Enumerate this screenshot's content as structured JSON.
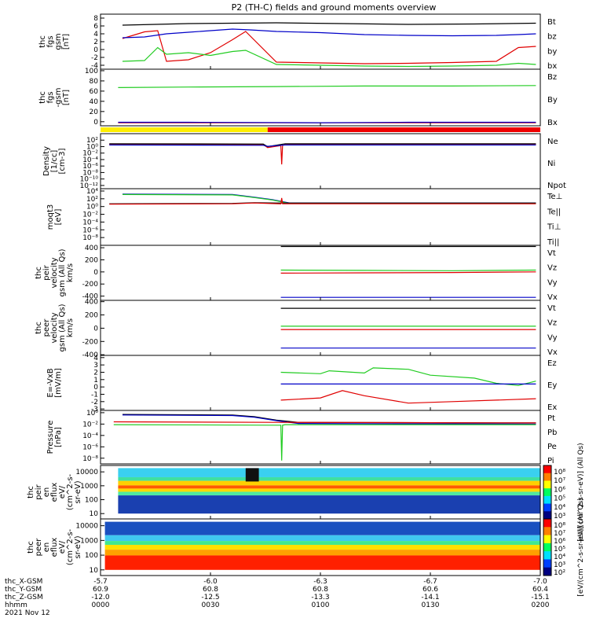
{
  "title": "P2 (TH-C) fields and ground moments overview",
  "colors": {
    "black": "#000000",
    "red": "#e00000",
    "green": "#22cc22",
    "blue": "#0000c8",
    "yellow": "#ffee00",
    "barred": "#ee0000"
  },
  "chart_data": [
    {
      "type": "line",
      "ylabel": [
        "thc",
        "fgs",
        "gsm",
        "[nT]"
      ],
      "ylim": [
        -5,
        9
      ],
      "yticks": [
        "-4",
        "-2",
        "0",
        "2",
        "4",
        "6",
        "8"
      ],
      "ytick_values": [
        -4,
        -2,
        0,
        2,
        4,
        6,
        8
      ],
      "legend": [
        {
          "label": "Bt",
          "color": "#000000"
        },
        {
          "label": "bz",
          "color": "#e00000"
        },
        {
          "label": "by",
          "color": "#22cc22"
        },
        {
          "label": "bx",
          "color": "#0000c8"
        }
      ],
      "series": [
        {
          "name": "Bt",
          "color": "#000000",
          "x": [
            0.05,
            0.2,
            0.4,
            0.55,
            0.7,
            0.85,
            0.99
          ],
          "y": [
            6.2,
            6.6,
            6.8,
            6.6,
            6.4,
            6.5,
            6.7
          ]
        },
        {
          "name": "bz",
          "color": "#e00000",
          "x": [
            0.05,
            0.1,
            0.13,
            0.15,
            0.2,
            0.25,
            0.3,
            0.33,
            0.4,
            0.5,
            0.6,
            0.7,
            0.8,
            0.9,
            0.95,
            0.99
          ],
          "y": [
            2.8,
            4.5,
            4.8,
            -3.0,
            -2.6,
            -0.8,
            2.5,
            4.6,
            -3.2,
            -3.4,
            -3.6,
            -3.5,
            -3.3,
            -3.0,
            0.5,
            0.8
          ]
        },
        {
          "name": "by",
          "color": "#22cc22",
          "x": [
            0.05,
            0.1,
            0.13,
            0.15,
            0.2,
            0.25,
            0.3,
            0.33,
            0.4,
            0.5,
            0.6,
            0.7,
            0.8,
            0.9,
            0.95,
            0.99
          ],
          "y": [
            -3.0,
            -2.8,
            0.5,
            -1.2,
            -0.8,
            -1.5,
            -0.5,
            -0.2,
            -3.8,
            -4.0,
            -4.2,
            -4.3,
            -4.2,
            -4.0,
            -3.5,
            -3.8
          ]
        },
        {
          "name": "bx",
          "color": "#0000c8",
          "x": [
            0.05,
            0.1,
            0.15,
            0.2,
            0.3,
            0.34,
            0.4,
            0.5,
            0.6,
            0.7,
            0.8,
            0.9,
            0.95,
            0.99
          ],
          "y": [
            3.0,
            3.2,
            4.0,
            4.4,
            5.2,
            5.0,
            4.6,
            4.3,
            3.8,
            3.6,
            3.5,
            3.6,
            3.8,
            4.0
          ]
        }
      ]
    },
    {
      "type": "line",
      "ylabel": [
        "thc",
        "fgs",
        "-gsm",
        "[nT]"
      ],
      "ylim": [
        -8,
        103
      ],
      "yticks": [
        "0",
        "20",
        "40",
        "60",
        "80",
        "100"
      ],
      "ytick_values": [
        0,
        20,
        40,
        60,
        80,
        100
      ],
      "legend": [
        {
          "label": "Bz",
          "color": "#e00000"
        },
        {
          "label": "By",
          "color": "#22cc22"
        },
        {
          "label": "Bx",
          "color": "#0000c8"
        }
      ],
      "series": [
        {
          "name": "Bz",
          "color": "#e00000",
          "x": [
            0.04,
            0.99
          ],
          "y": [
            -2,
            -2
          ]
        },
        {
          "name": "By",
          "color": "#22cc22",
          "x": [
            0.04,
            0.2,
            0.4,
            0.6,
            0.8,
            0.99
          ],
          "y": [
            67,
            68,
            69,
            70,
            70,
            71
          ]
        },
        {
          "name": "Bx",
          "color": "#0000c8",
          "x": [
            0.04,
            0.2,
            0.5,
            0.7,
            0.99
          ],
          "y": [
            -1,
            -1,
            -2,
            -1,
            -1
          ]
        }
      ]
    },
    {
      "type": "line",
      "log": true,
      "ylabel": [
        "Density",
        "[1/cc]",
        "[cm-3]"
      ],
      "ylim": [
        -13,
        4
      ],
      "yticks": [
        "10²",
        "10⁰",
        "10⁻²",
        "10⁻⁴",
        "10⁻⁶",
        "10⁻⁸",
        "10⁻¹⁰",
        "10⁻¹²"
      ],
      "ytick_values": [
        2,
        0,
        -2,
        -4,
        -6,
        -8,
        -10,
        -12
      ],
      "legend": [
        {
          "label": "Ne",
          "color": "#e00000"
        },
        {
          "label": "Ni",
          "color": "#000000"
        },
        {
          "label": "Npot",
          "color": "#0000c8"
        }
      ],
      "series": [
        {
          "name": "Ne",
          "color": "#e00000",
          "x": [
            0.02,
            0.37,
            0.38,
            0.41,
            0.412,
            0.414,
            0.42,
            0.43,
            0.99
          ],
          "y": [
            0.7,
            0.6,
            -0.3,
            0.3,
            -5.5,
            0.4,
            0.6,
            0.7,
            0.7
          ]
        },
        {
          "name": "Ni",
          "color": "#000000",
          "x": [
            0.02,
            0.37,
            0.38,
            0.42,
            0.99
          ],
          "y": [
            0.9,
            0.8,
            0.0,
            0.9,
            0.9
          ]
        },
        {
          "name": "Npot",
          "color": "#0000c8",
          "x": [
            0.02,
            0.37,
            0.38,
            0.42,
            0.99
          ],
          "y": [
            0.5,
            0.4,
            0.1,
            0.5,
            0.5
          ]
        }
      ]
    },
    {
      "type": "line",
      "log": true,
      "ylabel": [
        "moqt3",
        "[eV]"
      ],
      "ylim": [
        -10,
        4.6
      ],
      "yticks": [
        "10⁴",
        "10²",
        "10⁰",
        "10⁻²",
        "10⁻⁴",
        "10⁻⁶",
        "10⁻⁸"
      ],
      "ytick_values": [
        4,
        2,
        0,
        -2,
        -4,
        -6,
        -8
      ],
      "legend": [
        {
          "label": "Te⊥",
          "color": "#e00000"
        },
        {
          "label": "Te||",
          "color": "#000000"
        },
        {
          "label": "Ti⊥",
          "color": "#0000c8"
        },
        {
          "label": "Ti||",
          "color": "#22cc22"
        }
      ],
      "series": [
        {
          "name": "Ti⊥",
          "color": "#0000c8",
          "x": [
            0.05,
            0.3,
            0.35,
            0.39,
            0.43,
            0.99
          ],
          "y": [
            3.2,
            3.1,
            2.4,
            1.8,
            0.9,
            0.9
          ]
        },
        {
          "name": "Ti||",
          "color": "#22cc22",
          "x": [
            0.05,
            0.3,
            0.35,
            0.39,
            0.43,
            0.99
          ],
          "y": [
            3.1,
            3.0,
            2.3,
            1.7,
            0.8,
            0.8
          ]
        },
        {
          "name": "Te||",
          "color": "#000000",
          "x": [
            0.02,
            0.3,
            0.35,
            0.4,
            0.99
          ],
          "y": [
            0.7,
            0.8,
            1.0,
            0.9,
            0.9
          ]
        },
        {
          "name": "Te⊥",
          "color": "#e00000",
          "x": [
            0.02,
            0.3,
            0.35,
            0.41,
            0.412,
            0.414,
            0.99
          ],
          "y": [
            0.6,
            0.7,
            0.9,
            0.7,
            2.2,
            0.7,
            0.7
          ]
        }
      ]
    },
    {
      "type": "line",
      "ylabel": [
        "thc",
        "peir",
        "velocity",
        "gsm (All Qs)",
        "km/s"
      ],
      "ylim": [
        -470,
        440
      ],
      "yticks": [
        "400",
        "200",
        "0",
        "-200",
        "-400"
      ],
      "ytick_values": [
        400,
        200,
        0,
        -200,
        -400
      ],
      "legend": [
        {
          "label": "Vt",
          "color": "#000000"
        },
        {
          "label": "Vz",
          "color": "#e00000"
        },
        {
          "label": "Vy",
          "color": "#22cc22"
        },
        {
          "label": "Vx",
          "color": "#0000c8"
        }
      ],
      "series": [
        {
          "name": "Vt",
          "color": "#000000",
          "x": [
            0.41,
            0.99
          ],
          "y": [
            420,
            420
          ]
        },
        {
          "name": "Vy",
          "color": "#22cc22",
          "x": [
            0.41,
            0.6,
            0.8,
            0.99
          ],
          "y": [
            30,
            25,
            20,
            30
          ]
        },
        {
          "name": "Vz",
          "color": "#e00000",
          "x": [
            0.41,
            0.6,
            0.8,
            0.99
          ],
          "y": [
            -20,
            -15,
            -10,
            0
          ]
        },
        {
          "name": "Vx",
          "color": "#0000c8",
          "x": [
            0.41,
            0.99
          ],
          "y": [
            -420,
            -420
          ]
        }
      ]
    },
    {
      "type": "line",
      "ylabel": [
        "thc",
        "peer",
        "velocity",
        "gsm (All Qs)",
        "km/s"
      ],
      "ylim": [
        -410,
        420
      ],
      "yticks": [
        "400",
        "200",
        "0",
        "-200",
        "-400"
      ],
      "ytick_values": [
        400,
        200,
        0,
        -200,
        -400
      ],
      "legend": [
        {
          "label": "Vt",
          "color": "#000000"
        },
        {
          "label": "Vz",
          "color": "#e00000"
        },
        {
          "label": "Vy",
          "color": "#22cc22"
        },
        {
          "label": "Vx",
          "color": "#0000c8"
        }
      ],
      "series": [
        {
          "name": "Vt",
          "color": "#000000",
          "x": [
            0.41,
            0.99
          ],
          "y": [
            300,
            300
          ]
        },
        {
          "name": "Vy",
          "color": "#22cc22",
          "x": [
            0.41,
            0.99
          ],
          "y": [
            30,
            30
          ]
        },
        {
          "name": "Vz",
          "color": "#e00000",
          "x": [
            0.41,
            0.99
          ],
          "y": [
            -20,
            -20
          ]
        },
        {
          "name": "Vx",
          "color": "#0000c8",
          "x": [
            0.41,
            0.99
          ],
          "y": [
            -300,
            -300
          ]
        }
      ]
    },
    {
      "type": "line",
      "ylabel": [
        "E=-VxB",
        "[mV/m]"
      ],
      "ylim": [
        -3.2,
        4.3
      ],
      "yticks": [
        "4",
        "3",
        "2",
        "1",
        "0",
        "-1",
        "-2",
        "-3"
      ],
      "ytick_values": [
        4,
        3,
        2,
        1,
        0,
        -1,
        -2,
        -3
      ],
      "legend": [
        {
          "label": "Ez",
          "color": "#e00000"
        },
        {
          "label": "Ey",
          "color": "#22cc22"
        },
        {
          "label": "Ex",
          "color": "#0000c8"
        }
      ],
      "series": [
        {
          "name": "Ey",
          "color": "#22cc22",
          "x": [
            0.41,
            0.5,
            0.52,
            0.6,
            0.62,
            0.7,
            0.75,
            0.85,
            0.9,
            0.95,
            0.99
          ],
          "y": [
            2.0,
            1.8,
            2.2,
            1.9,
            2.6,
            2.4,
            1.6,
            1.2,
            0.5,
            0.2,
            0.8
          ]
        },
        {
          "name": "Ex",
          "color": "#0000c8",
          "x": [
            0.41,
            0.99
          ],
          "y": [
            0.4,
            0.4
          ]
        },
        {
          "name": "Ez",
          "color": "#e00000",
          "x": [
            0.41,
            0.5,
            0.55,
            0.6,
            0.7,
            0.8,
            0.9,
            0.99
          ],
          "y": [
            -1.8,
            -1.5,
            -0.5,
            -1.2,
            -2.2,
            -2.0,
            -1.8,
            -1.6
          ]
        }
      ]
    },
    {
      "type": "line",
      "log": true,
      "ylabel": [
        "Pressure",
        "[nPa]"
      ],
      "ylim": [
        -9,
        0.4
      ],
      "yticks": [
        "10⁰",
        "10⁻²",
        "10⁻⁴",
        "10⁻⁶",
        "10⁻⁸"
      ],
      "ytick_values": [
        0,
        -2,
        -4,
        -6,
        -8
      ],
      "legend": [
        {
          "label": "Pt",
          "color": "#000000"
        },
        {
          "label": "Pb",
          "color": "#e00000"
        },
        {
          "label": "Pe",
          "color": "#22cc22"
        },
        {
          "label": "Pi",
          "color": "#0000c8"
        }
      ],
      "series": [
        {
          "name": "Pt",
          "color": "#000000",
          "x": [
            0.05,
            0.3,
            0.35,
            0.4,
            0.45,
            0.99
          ],
          "y": [
            -0.3,
            -0.4,
            -0.7,
            -1.3,
            -1.7,
            -1.8
          ]
        },
        {
          "name": "Pi",
          "color": "#0000c8",
          "x": [
            0.05,
            0.3,
            0.35,
            0.4,
            0.45,
            0.99
          ],
          "y": [
            -0.4,
            -0.5,
            -0.8,
            -1.4,
            -1.9,
            -2.0
          ]
        },
        {
          "name": "Pb",
          "color": "#e00000",
          "x": [
            0.03,
            0.4,
            0.99
          ],
          "y": [
            -1.6,
            -1.7,
            -1.8
          ]
        },
        {
          "name": "Pe",
          "color": "#22cc22",
          "x": [
            0.03,
            0.41,
            0.412,
            0.414,
            0.42,
            0.99
          ],
          "y": [
            -2.1,
            -2.2,
            -8.4,
            -2.2,
            -2.1,
            -2.1
          ]
        }
      ]
    },
    {
      "type": "heatmap",
      "ylabel": [
        "thc",
        "peir",
        "en",
        "eflux",
        "eV/",
        "(cm^2-s-",
        "sr-eV)"
      ],
      "yticks": [
        "10000",
        "1000",
        "100",
        "10"
      ],
      "colorbar_label": "[eV/(cm^2-s-sr-eV)] (All Qs)",
      "colorbar_ticks": [
        "10⁸",
        "10⁷",
        "10⁶",
        "10⁵",
        "10⁴",
        "10³"
      ],
      "x_start": 0.04,
      "x_gap": [
        0.33,
        0.36
      ],
      "bands": [
        {
          "from": 1.0,
          "to": 0.8,
          "color": "#3ad0f0"
        },
        {
          "from": 0.8,
          "to": 0.72,
          "color": "#40e0a0"
        },
        {
          "from": 0.72,
          "to": 0.62,
          "color": "#ffd000"
        },
        {
          "from": 0.62,
          "to": 0.55,
          "color": "#ff5a00"
        },
        {
          "from": 0.55,
          "to": 0.48,
          "color": "#ffd800"
        },
        {
          "from": 0.48,
          "to": 0.4,
          "color": "#50e8a0"
        },
        {
          "from": 0.4,
          "to": 0.0,
          "color": "#1a40b0"
        }
      ]
    },
    {
      "type": "heatmap",
      "ylabel": [
        "thc",
        "peer",
        "en",
        "eflux",
        "eV/",
        "(cm^2-s-",
        "sr-eV)"
      ],
      "yticks": [
        "10000",
        "1000",
        "100",
        "10"
      ],
      "colorbar_label": "[eV/(cm^2-s-sr-eV)] (All Qs)",
      "colorbar_ticks": [
        "10⁸",
        "10⁷",
        "10⁶",
        "10⁵",
        "10⁴",
        "10³",
        "10²"
      ],
      "x_start": 0.01,
      "bands": [
        {
          "from": 1.0,
          "to": 0.72,
          "color": "#1a50c0"
        },
        {
          "from": 0.72,
          "to": 0.6,
          "color": "#40c8f0"
        },
        {
          "from": 0.6,
          "to": 0.52,
          "color": "#40e890"
        },
        {
          "from": 0.52,
          "to": 0.42,
          "color": "#ffe000"
        },
        {
          "from": 0.42,
          "to": 0.3,
          "color": "#ffa000"
        },
        {
          "from": 0.3,
          "to": 0.0,
          "color": "#ff2000"
        }
      ]
    }
  ],
  "mode_bar": [
    {
      "from": 0.0,
      "to": 0.38,
      "color": "#ffee00"
    },
    {
      "from": 0.38,
      "to": 1.0,
      "color": "#ee0000"
    }
  ],
  "xaxis": {
    "row_labels": [
      "thc_X-GSM",
      "thc_Y-GSM",
      "thc_Z-GSM",
      "hhmm",
      "2021 Nov 12"
    ],
    "columns": [
      {
        "x": 0.0,
        "values": [
          "-5.7",
          "60.9",
          "-12.0",
          "0000"
        ]
      },
      {
        "x": 0.25,
        "values": [
          "-6.0",
          "60.8",
          "-12.5",
          "0030"
        ]
      },
      {
        "x": 0.5,
        "values": [
          "-6.3",
          "60.8",
          "-13.3",
          "0100"
        ]
      },
      {
        "x": 0.75,
        "values": [
          "-6.7",
          "60.6",
          "-14.1",
          "0130"
        ]
      },
      {
        "x": 1.0,
        "values": [
          "-7.0",
          "60.4",
          "-15.1",
          "0200"
        ]
      }
    ]
  }
}
